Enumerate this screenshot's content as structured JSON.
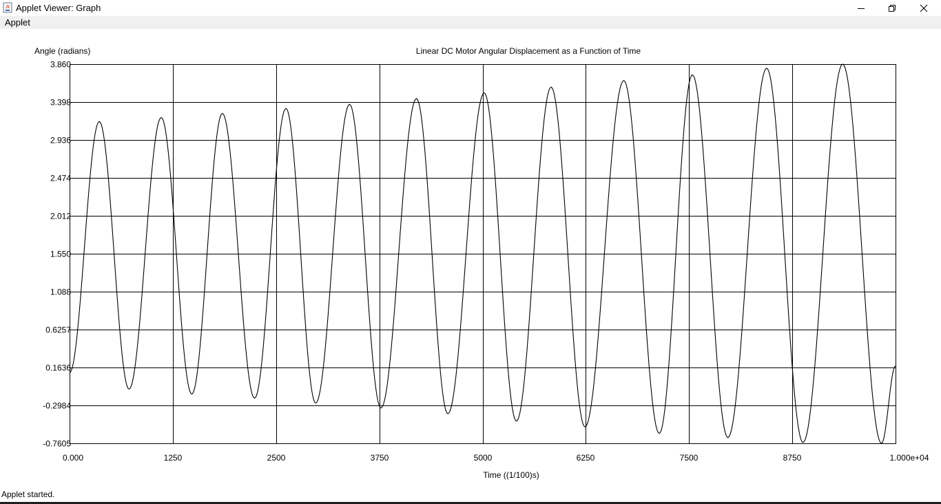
{
  "window": {
    "title": "Applet Viewer: Graph",
    "icon": "java-cup-icon",
    "controls": [
      "minimize-icon",
      "restore-icon",
      "close-icon"
    ]
  },
  "menu": {
    "items": [
      "Applet"
    ]
  },
  "status": {
    "text": "Applet started."
  },
  "chart_data": {
    "type": "line",
    "title": "Linear DC Motor Angular Displacement as a Function of Time",
    "xlabel": "Time ((1/100)s)",
    "ylabel": "Angle (radians)",
    "xlim": [
      0,
      10000
    ],
    "ylim": [
      -0.7605,
      3.86
    ],
    "grid": true,
    "x_ticks": [
      0,
      1250,
      2500,
      3750,
      5000,
      6250,
      7500,
      8750,
      10000
    ],
    "x_tick_labels": [
      "0.000",
      "1250",
      "2500",
      "3750",
      "5000",
      "6250",
      "7500",
      "8750",
      "1.000e+04"
    ],
    "y_ticks": [
      3.86,
      3.398,
      2.936,
      2.474,
      2.012,
      1.55,
      1.088,
      0.6257,
      0.1636,
      -0.2984,
      -0.7605
    ],
    "y_tick_labels": [
      "3.860",
      "3.398",
      "2.936",
      "2.474",
      "2.012",
      "1.550",
      "1.088",
      "0.6257",
      "0.1636",
      "-0.2984",
      "-0.7605"
    ],
    "series": [
      {
        "color": "#000000",
        "peaks": [
          [
            360,
            3.16
          ],
          [
            1110,
            3.21
          ],
          [
            1850,
            3.26
          ],
          [
            2620,
            3.32
          ],
          [
            3390,
            3.37
          ],
          [
            4200,
            3.44
          ],
          [
            5020,
            3.51
          ],
          [
            5830,
            3.58
          ],
          [
            6710,
            3.66
          ],
          [
            7540,
            3.73
          ],
          [
            8440,
            3.81
          ],
          [
            9360,
            3.86
          ]
        ],
        "troughs": [
          [
            0,
            0.1
          ],
          [
            720,
            -0.1
          ],
          [
            1480,
            -0.16
          ],
          [
            2240,
            -0.21
          ],
          [
            2980,
            -0.27
          ],
          [
            3770,
            -0.33
          ],
          [
            4580,
            -0.4
          ],
          [
            5410,
            -0.49
          ],
          [
            6240,
            -0.56
          ],
          [
            7140,
            -0.64
          ],
          [
            7970,
            -0.69
          ],
          [
            8880,
            -0.75
          ],
          [
            9830,
            -0.76
          ]
        ],
        "end": [
          10000,
          0.18
        ]
      }
    ]
  }
}
